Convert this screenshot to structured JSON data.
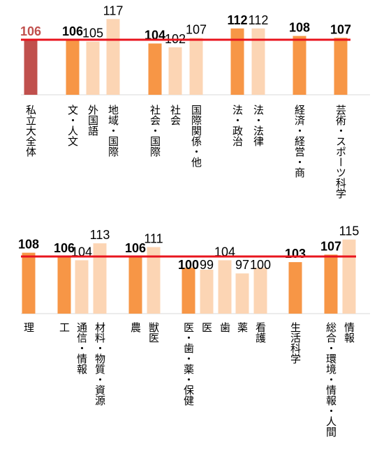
{
  "chart_data": {
    "type": "bar",
    "title": "",
    "reference_line_color": "#e8141e",
    "colors": {
      "total": "#c0504d",
      "faculty": "#f79646",
      "department": "#fcd5b4"
    },
    "panels": [
      {
        "reference_value": 106,
        "categories": [
          "私立大全体",
          "文・人文",
          "外国語",
          "地域・国際",
          "社会・国際",
          "社会",
          "国際関係・他",
          "法・政治",
          "法・法律",
          "経済・経営・商",
          "芸術・スポーツ科学"
        ],
        "values": [
          106,
          106,
          105,
          117,
          104,
          102,
          107,
          112,
          112,
          108,
          107
        ],
        "kinds": [
          "total",
          "faculty",
          "department",
          "department",
          "faculty",
          "department",
          "department",
          "faculty",
          "department",
          "faculty",
          "faculty"
        ]
      },
      {
        "reference_value": 106,
        "categories": [
          "理",
          "工",
          "通信・情報",
          "材料・物質・資源",
          "農",
          "獣医",
          "医・歯・薬・保健",
          "医",
          "歯",
          "薬",
          "看護",
          "生活科学",
          "総合・環境・情報・人間",
          "情報"
        ],
        "values": [
          108,
          106,
          104,
          113,
          106,
          111,
          100,
          99,
          104,
          97,
          100,
          103,
          107,
          115
        ],
        "kinds": [
          "faculty",
          "faculty",
          "department",
          "department",
          "faculty",
          "department",
          "faculty",
          "department",
          "department",
          "department",
          "department",
          "faculty",
          "faculty",
          "department"
        ]
      }
    ]
  }
}
